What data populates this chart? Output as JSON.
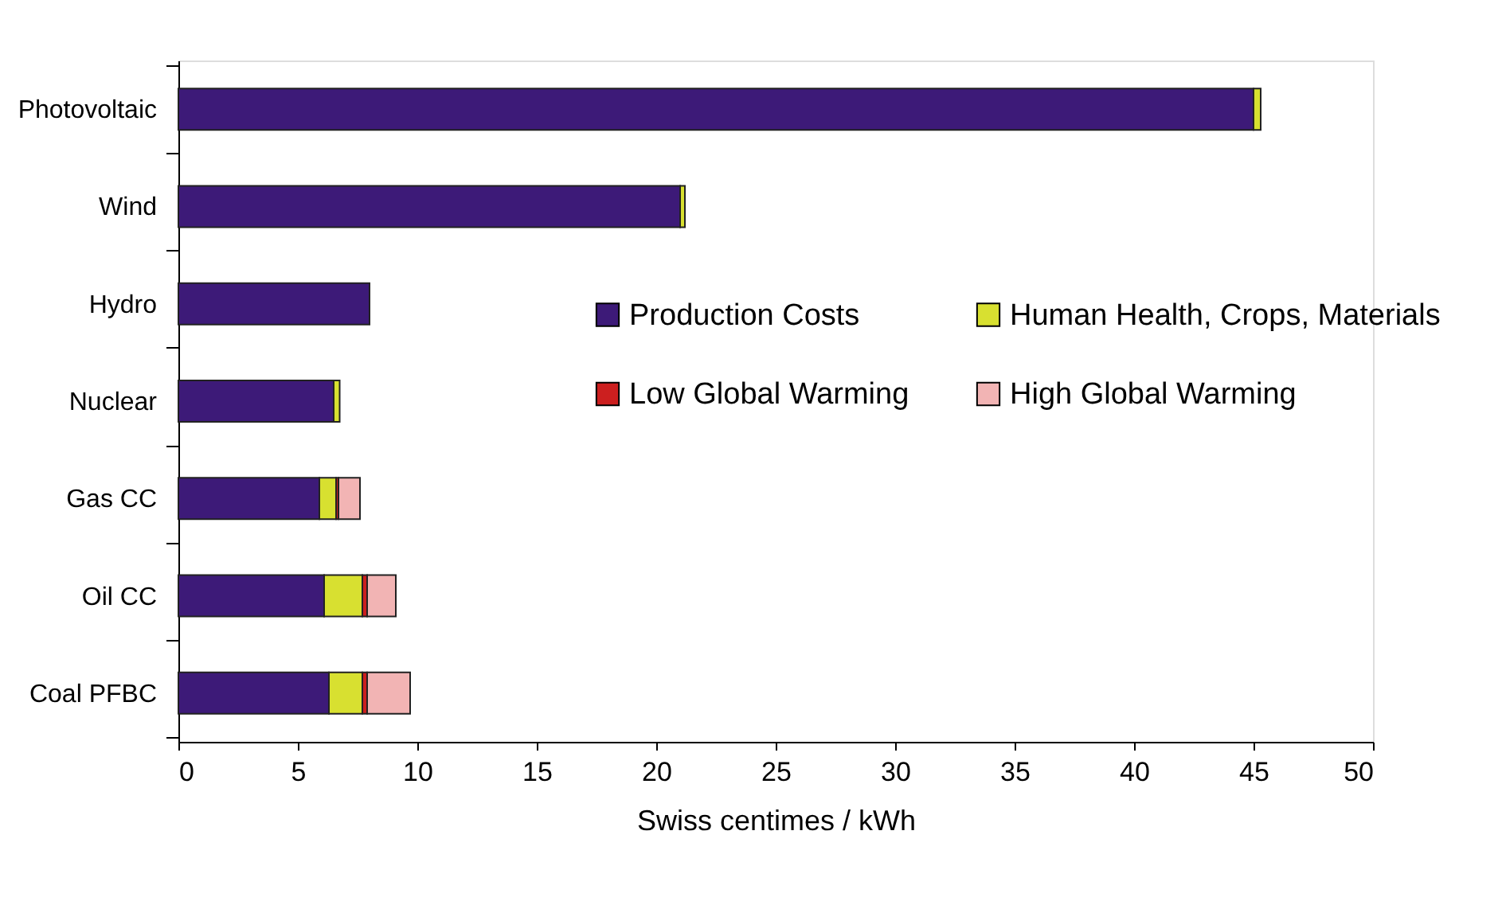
{
  "chart_data": {
    "type": "bar",
    "orientation": "horizontal",
    "stacked": true,
    "categories": [
      "Photovoltaic",
      "Wind",
      "Hydro",
      "Nuclear",
      "Gas CC",
      "Oil CC",
      "Coal PFBC"
    ],
    "series": [
      {
        "name": "Production Costs",
        "color": "#3d1a78",
        "values": [
          45.0,
          21.0,
          8.0,
          6.5,
          5.9,
          6.1,
          6.3
        ]
      },
      {
        "name": "Human Health, Crops, Materials",
        "color": "#d8e030",
        "values": [
          0.3,
          0.2,
          0,
          0.25,
          0.7,
          1.6,
          1.4
        ]
      },
      {
        "name": "Low Global Warming",
        "color": "#cc1f1f",
        "values": [
          0,
          0,
          0,
          0,
          0.1,
          0.2,
          0.2
        ]
      },
      {
        "name": "High Global Warming",
        "color": "#f2b4b4",
        "values": [
          0,
          0,
          0,
          0,
          0.9,
          1.2,
          1.8
        ]
      }
    ],
    "xlabel": "Swiss centimes / kWh",
    "xlim": [
      0,
      50
    ],
    "xticks": [
      0,
      5,
      10,
      15,
      20,
      25,
      30,
      35,
      40,
      45,
      50
    ],
    "grid": false,
    "legend": "right"
  }
}
